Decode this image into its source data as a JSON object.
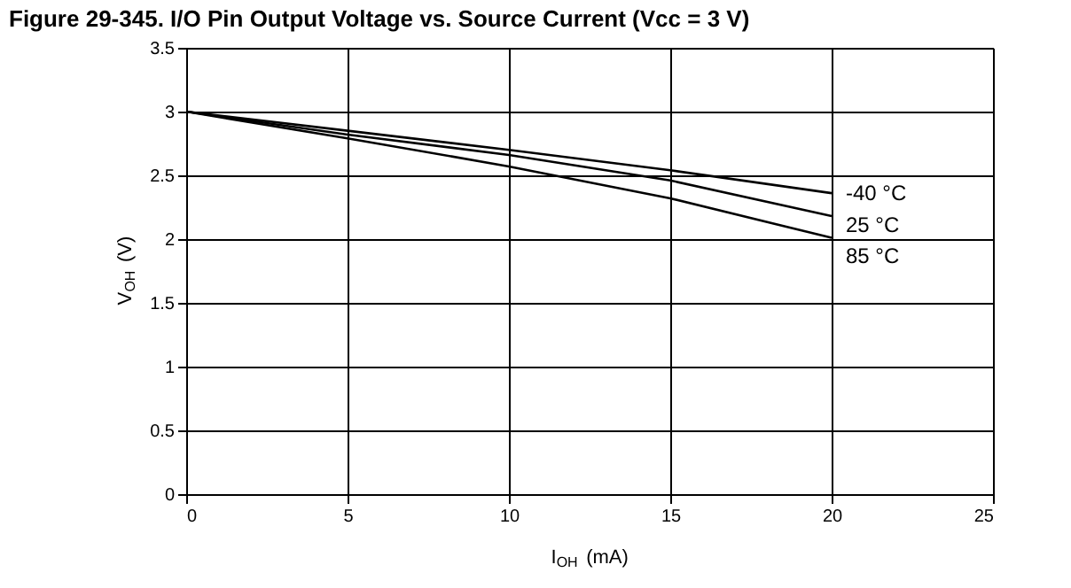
{
  "chart_data": {
    "type": "line",
    "title": "Figure 29-345. I/O Pin Output Voltage vs. Source Current (Vcc = 3 V)",
    "xlabel": "I$_{OH}$ (mA)",
    "ylabel": "V$_{OH}$ (V)",
    "x": [
      0,
      5,
      10,
      15,
      20
    ],
    "series": [
      {
        "name": "-40 °C",
        "color": "#000000",
        "values": [
          3.0,
          2.85,
          2.7,
          2.54,
          2.36
        ]
      },
      {
        "name": "25 °C",
        "color": "#000000",
        "values": [
          3.0,
          2.82,
          2.66,
          2.46,
          2.18
        ]
      },
      {
        "name": "85 °C",
        "color": "#000000",
        "values": [
          3.0,
          2.79,
          2.57,
          2.32,
          2.01
        ]
      }
    ],
    "xlim": [
      0,
      25
    ],
    "xticks": [
      0,
      5,
      10,
      15,
      20,
      25
    ],
    "ylim": [
      0,
      3.5
    ],
    "yticks": [
      0,
      0.5,
      1,
      1.5,
      2,
      2.5,
      3,
      3.5
    ],
    "grid": true,
    "legend": false,
    "marker": "none",
    "line_style": "solid"
  }
}
